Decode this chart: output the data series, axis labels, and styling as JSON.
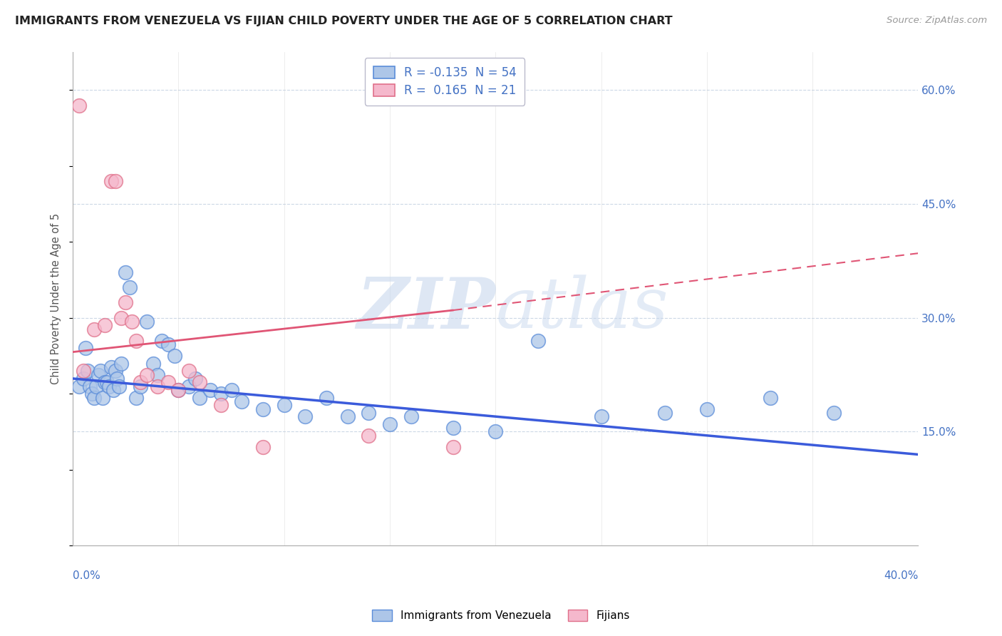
{
  "title": "IMMIGRANTS FROM VENEZUELA VS FIJIAN CHILD POVERTY UNDER THE AGE OF 5 CORRELATION CHART",
  "source": "Source: ZipAtlas.com",
  "ylabel": "Child Poverty Under the Age of 5",
  "right_yticks": [
    15.0,
    30.0,
    45.0,
    60.0
  ],
  "legend_blue_R": "-0.135",
  "legend_blue_N": "54",
  "legend_pink_R": "0.165",
  "legend_pink_N": "21",
  "blue_scatter_color": "#adc6e8",
  "blue_edge_color": "#5b8dd9",
  "pink_scatter_color": "#f5b8cc",
  "pink_edge_color": "#e0708a",
  "blue_line_color": "#3b5bdb",
  "pink_line_color": "#e05575",
  "tick_color": "#4472c4",
  "watermark_color": "#c8d8ee",
  "grid_color": "#c0cfe0",
  "background_color": "#ffffff",
  "blue_points": [
    [
      0.3,
      21.0
    ],
    [
      0.5,
      22.0
    ],
    [
      0.6,
      26.0
    ],
    [
      0.7,
      23.0
    ],
    [
      0.8,
      21.0
    ],
    [
      0.9,
      20.0
    ],
    [
      1.0,
      19.5
    ],
    [
      1.1,
      21.0
    ],
    [
      1.2,
      22.5
    ],
    [
      1.3,
      23.0
    ],
    [
      1.4,
      19.5
    ],
    [
      1.5,
      21.5
    ],
    [
      1.6,
      21.5
    ],
    [
      1.7,
      21.0
    ],
    [
      1.8,
      23.5
    ],
    [
      1.9,
      20.5
    ],
    [
      2.0,
      23.0
    ],
    [
      2.1,
      22.0
    ],
    [
      2.2,
      21.0
    ],
    [
      2.3,
      24.0
    ],
    [
      2.5,
      36.0
    ],
    [
      2.7,
      34.0
    ],
    [
      3.0,
      19.5
    ],
    [
      3.2,
      21.0
    ],
    [
      3.5,
      29.5
    ],
    [
      3.8,
      24.0
    ],
    [
      4.0,
      22.5
    ],
    [
      4.2,
      27.0
    ],
    [
      4.5,
      26.5
    ],
    [
      4.8,
      25.0
    ],
    [
      5.0,
      20.5
    ],
    [
      5.5,
      21.0
    ],
    [
      5.8,
      22.0
    ],
    [
      6.0,
      19.5
    ],
    [
      6.5,
      20.5
    ],
    [
      7.0,
      20.0
    ],
    [
      7.5,
      20.5
    ],
    [
      8.0,
      19.0
    ],
    [
      9.0,
      18.0
    ],
    [
      10.0,
      18.5
    ],
    [
      11.0,
      17.0
    ],
    [
      12.0,
      19.5
    ],
    [
      13.0,
      17.0
    ],
    [
      14.0,
      17.5
    ],
    [
      15.0,
      16.0
    ],
    [
      16.0,
      17.0
    ],
    [
      18.0,
      15.5
    ],
    [
      20.0,
      15.0
    ],
    [
      22.0,
      27.0
    ],
    [
      25.0,
      17.0
    ],
    [
      28.0,
      17.5
    ],
    [
      30.0,
      18.0
    ],
    [
      33.0,
      19.5
    ],
    [
      36.0,
      17.5
    ]
  ],
  "pink_points": [
    [
      0.3,
      58.0
    ],
    [
      0.5,
      23.0
    ],
    [
      1.0,
      28.5
    ],
    [
      1.5,
      29.0
    ],
    [
      1.8,
      48.0
    ],
    [
      2.0,
      48.0
    ],
    [
      2.3,
      30.0
    ],
    [
      2.5,
      32.0
    ],
    [
      2.8,
      29.5
    ],
    [
      3.0,
      27.0
    ],
    [
      3.2,
      21.5
    ],
    [
      3.5,
      22.5
    ],
    [
      4.0,
      21.0
    ],
    [
      4.5,
      21.5
    ],
    [
      5.0,
      20.5
    ],
    [
      5.5,
      23.0
    ],
    [
      6.0,
      21.5
    ],
    [
      7.0,
      18.5
    ],
    [
      9.0,
      13.0
    ],
    [
      14.0,
      14.5
    ],
    [
      18.0,
      13.0
    ]
  ],
  "blue_trendline": {
    "x_start": 0.0,
    "x_end": 40.0,
    "y_start": 22.0,
    "y_end": 12.0
  },
  "pink_trendline_solid": {
    "x_start": 0.0,
    "x_end": 18.0,
    "y_start": 25.5,
    "y_end": 31.0
  },
  "pink_trendline_dash": {
    "x_start": 18.0,
    "x_end": 40.0,
    "y_start": 31.0,
    "y_end": 38.5
  },
  "xmin": 0.0,
  "xmax": 40.0,
  "ymin": 0.0,
  "ymax": 65.0
}
